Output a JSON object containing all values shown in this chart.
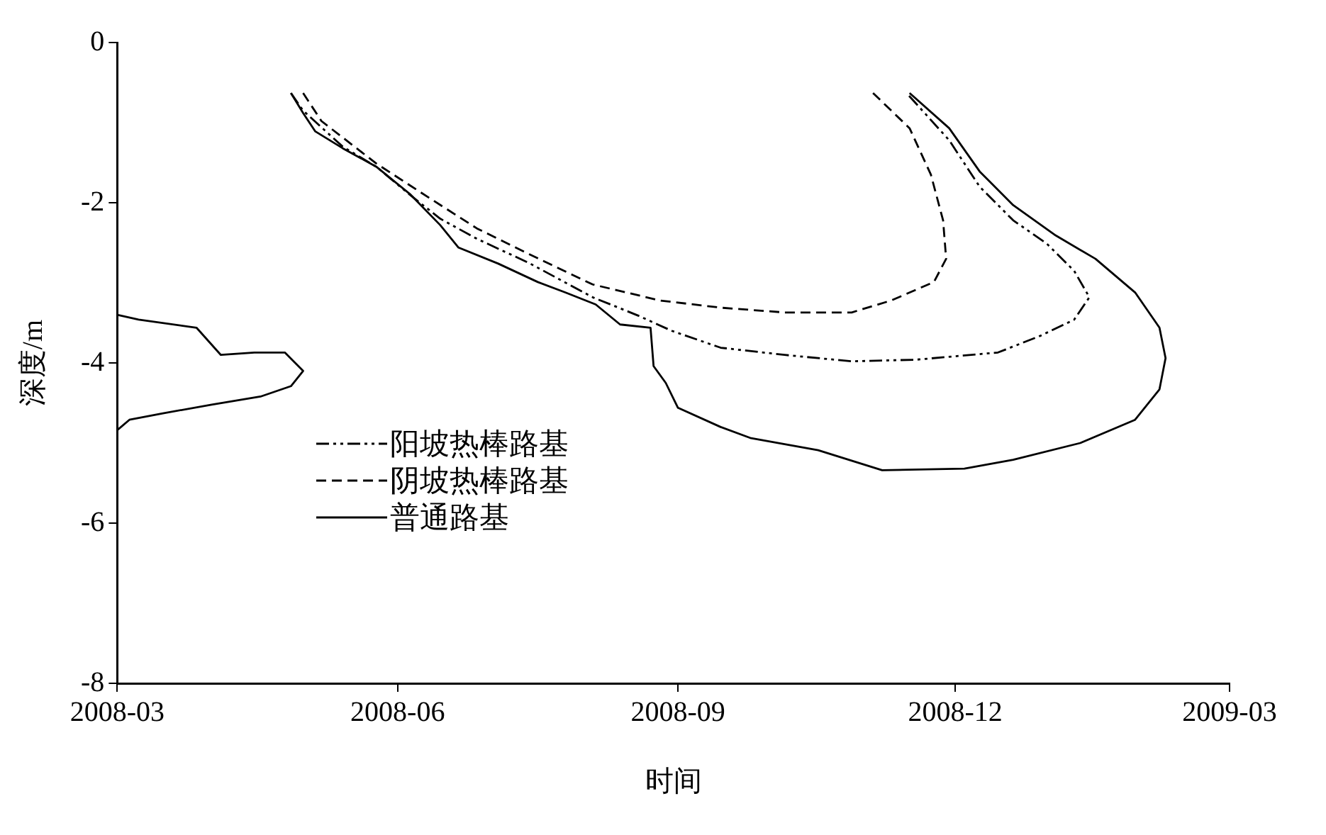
{
  "chart_data": {
    "type": "line",
    "xlabel": "时间",
    "ylabel": "深度/m",
    "xlim": [
      "2008-03-01",
      "2009-03-01"
    ],
    "xticks": [
      {
        "value": "2008-03-01",
        "label": "2008-03"
      },
      {
        "value": "2008-06-01",
        "label": "2008-06"
      },
      {
        "value": "2008-09-01",
        "label": "2008-09"
      },
      {
        "value": "2008-12-01",
        "label": "2008-12"
      },
      {
        "value": "2009-03-01",
        "label": "2009-03"
      }
    ],
    "ylim": [
      -8,
      0
    ],
    "yticks": [
      0,
      -2,
      -4,
      -6,
      -8
    ],
    "grid": false,
    "legend": "bottom left",
    "marker": "none",
    "series": [
      {
        "name": "阳坡热棒路基",
        "color": "#000000",
        "line_style": "dotted",
        "x": [
          "2008-04-27",
          "2008-05-01",
          "2008-05-14",
          "2008-05-25",
          "2008-06-05",
          "2008-06-15",
          "2008-06-27",
          "2008-07-14",
          "2008-08-04",
          "2008-08-19",
          "2008-08-30",
          "2008-09-15",
          "2008-10-06",
          "2008-10-28",
          "2008-11-18",
          "2008-12-15",
          "2008-12-29",
          "2009-01-09",
          "2009-01-14",
          "2009-01-09",
          "2008-12-31",
          "2008-12-20",
          "2008-12-09",
          "2008-11-29",
          "2008-11-15"
        ],
        "values": [
          -0.63,
          -0.85,
          -1.3,
          -1.55,
          -1.9,
          -2.2,
          -2.45,
          -2.75,
          -3.18,
          -3.41,
          -3.6,
          -3.81,
          -3.9,
          -3.98,
          -3.96,
          -3.87,
          -3.66,
          -3.46,
          -3.18,
          -2.85,
          -2.51,
          -2.22,
          -1.8,
          -1.22,
          -0.63
        ]
      },
      {
        "name": "阴坡热棒路基",
        "color": "#000000",
        "line_style": "dashed",
        "x": [
          "2008-05-01",
          "2008-05-07",
          "2008-05-25",
          "2008-06-11",
          "2008-06-27",
          "2008-07-14",
          "2008-08-04",
          "2008-08-26",
          "2008-09-15",
          "2008-10-06",
          "2008-10-28",
          "2008-11-10",
          "2008-11-24",
          "2008-11-28",
          "2008-11-27",
          "2008-11-23",
          "2008-11-16",
          "2008-11-04"
        ],
        "values": [
          -0.63,
          -0.98,
          -1.51,
          -1.93,
          -2.32,
          -2.64,
          -3.02,
          -3.22,
          -3.31,
          -3.37,
          -3.37,
          -3.22,
          -2.99,
          -2.7,
          -2.22,
          -1.65,
          -1.07,
          -0.63
        ]
      },
      {
        "name": "普通路基",
        "color": "#000000",
        "line_style": "solid",
        "x": [
          "2008-03-01",
          "2008-03-08",
          "2008-03-27",
          "2008-04-04",
          "2008-04-15",
          "2008-04-25",
          "2008-05-01",
          "2008-04-27",
          "2008-04-17",
          "2008-04-01",
          "2008-03-16",
          "2008-03-05",
          "2008-03-01",
          null,
          "2008-04-27",
          "2008-05-01",
          "2008-05-05",
          "2008-05-14",
          "2008-05-25",
          "2008-06-05",
          "2008-06-15",
          "2008-06-21",
          "2008-07-04",
          "2008-07-17",
          "2008-07-26",
          "2008-08-05",
          "2008-08-13",
          "2008-08-23",
          "2008-08-24",
          "2008-08-28",
          "2008-09-01",
          "2008-09-15",
          "2008-09-25",
          "2008-10-17",
          "2008-11-07",
          "2008-12-04",
          "2008-12-20",
          "2009-01-11",
          "2009-01-29",
          "2009-02-06",
          "2009-02-08",
          "2009-02-06",
          "2009-01-29",
          "2009-01-16",
          "2009-01-03",
          "2008-12-20",
          "2008-12-09",
          "2008-11-29",
          "2008-11-16"
        ],
        "values": [
          -3.4,
          -3.46,
          -3.56,
          -3.9,
          -3.87,
          -3.87,
          -4.1,
          -4.29,
          -4.42,
          -4.52,
          -4.63,
          -4.71,
          -4.84,
          null,
          -0.63,
          -0.88,
          -1.11,
          -1.32,
          -1.55,
          -1.89,
          -2.28,
          -2.56,
          -2.76,
          -2.99,
          -3.12,
          -3.27,
          -3.52,
          -3.56,
          -4.04,
          -4.25,
          -4.56,
          -4.8,
          -4.94,
          -5.09,
          -5.34,
          -5.32,
          -5.21,
          -5.0,
          -4.71,
          -4.33,
          -3.94,
          -3.56,
          -3.12,
          -2.7,
          -2.41,
          -2.03,
          -1.61,
          -1.07,
          -0.63
        ]
      }
    ]
  }
}
